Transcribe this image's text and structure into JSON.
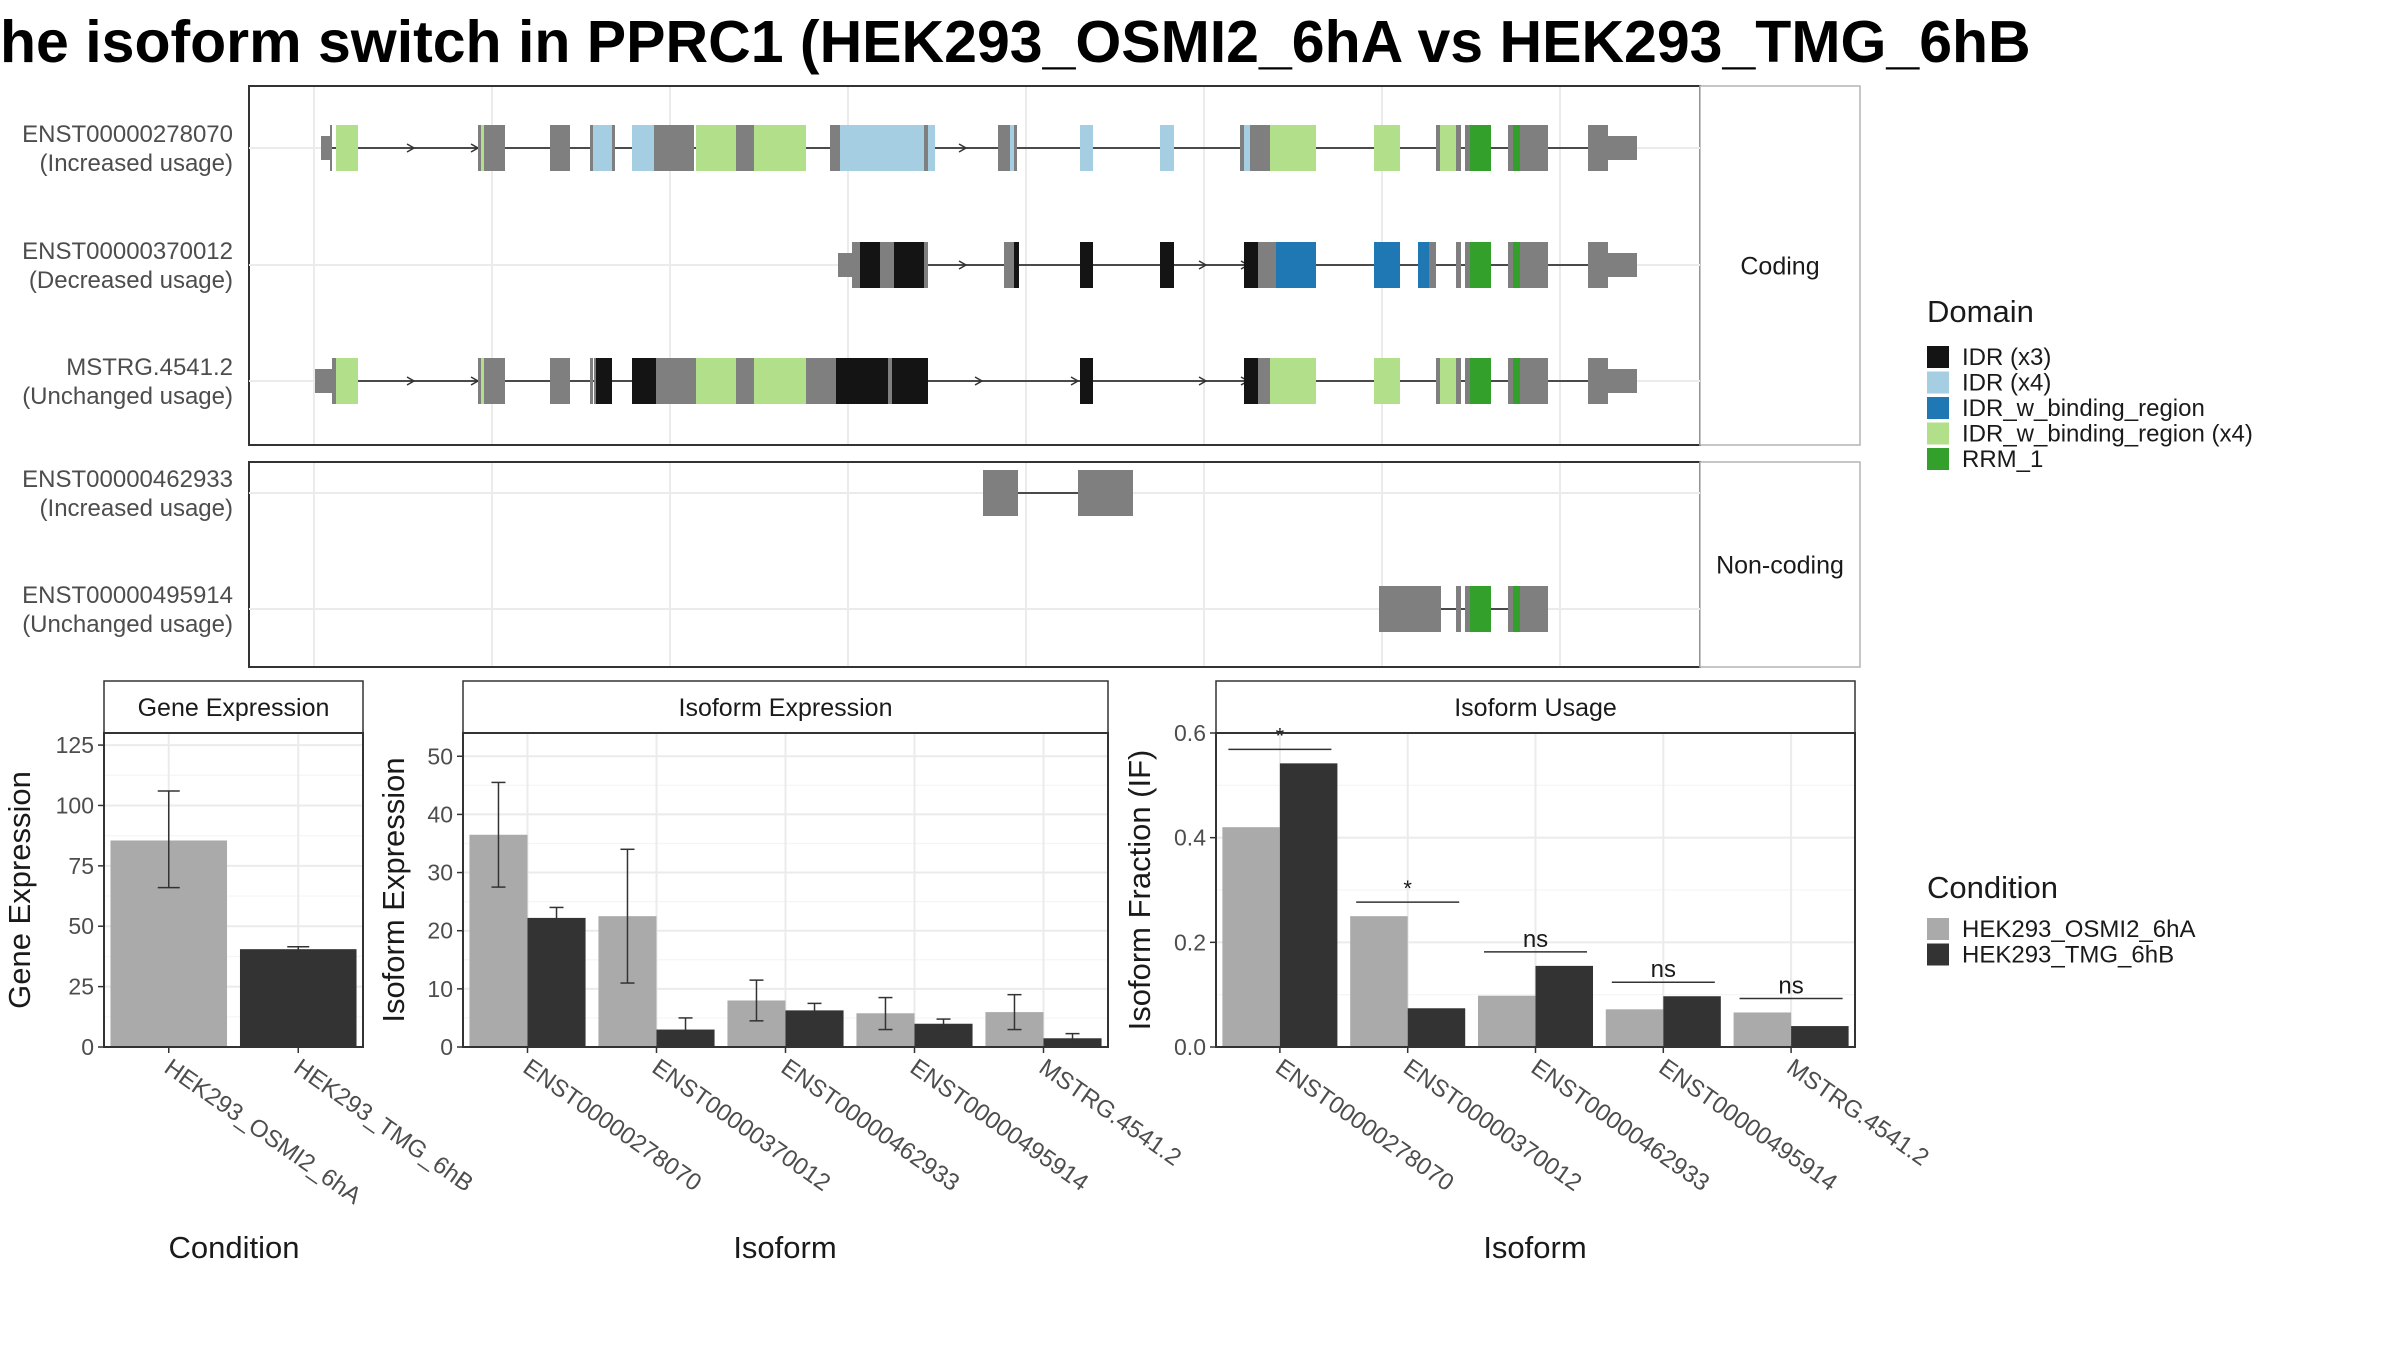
{
  "title": "he isoform switch in PPRC1 (HEK293_OSMI2_6hA vs HEK293_TMG_6hB",
  "colors": {
    "utr": "#7F7F7F",
    "cond_a": "#AAAAAA",
    "cond_b": "#333333",
    "idr_x3": "#141414",
    "idr_x4": "#A6CEE3",
    "idr_bind": "#1F78B4",
    "idr_bind_x4": "#B2DF8A",
    "rrm": "#33A02C"
  },
  "panels": {
    "coding_label": "Coding",
    "noncoding_label": "Non-coding"
  },
  "transcripts": [
    {
      "id": "ENST00000278070",
      "usage": "(Increased usage)",
      "group": "coding"
    },
    {
      "id": "ENST00000370012",
      "usage": "(Decreased usage)",
      "group": "coding"
    },
    {
      "id": "MSTRG.4541.2",
      "usage": "(Unchanged usage)",
      "group": "coding"
    },
    {
      "id": "ENST00000462933",
      "usage": "(Increased usage)",
      "group": "noncoding"
    },
    {
      "id": "ENST00000495914",
      "usage": "(Unchanged usage)",
      "group": "noncoding"
    }
  ],
  "domain_legend": {
    "title": "Domain",
    "items": [
      {
        "label": "IDR (x3)",
        "color": "#141414"
      },
      {
        "label": "IDR (x4)",
        "color": "#A6CEE3"
      },
      {
        "label": "IDR_w_binding_region",
        "color": "#1F78B4"
      },
      {
        "label": "IDR_w_binding_region (x4)",
        "color": "#B2DF8A"
      },
      {
        "label": "RRM_1",
        "color": "#33A02C"
      }
    ]
  },
  "condition_legend": {
    "title": "Condition",
    "items": [
      {
        "label": "HEK293_OSMI2_6hA",
        "color": "#AAAAAA"
      },
      {
        "label": "HEK293_TMG_6hB",
        "color": "#333333"
      }
    ]
  },
  "chart_data": [
    {
      "type": "bar",
      "title": "Gene Expression",
      "xlabel": "Condition",
      "ylabel": "Gene Expression",
      "ylim": [
        0,
        130
      ],
      "yticks": [
        0,
        25,
        50,
        75,
        100,
        125
      ],
      "categories": [
        "HEK293_OSMI2_6hA",
        "HEK293_TMG_6hB"
      ],
      "values": [
        85.5,
        40.5
      ],
      "errors": [
        [
          66,
          106
        ],
        [
          39.5,
          41.5
        ]
      ],
      "colors": [
        "#AAAAAA",
        "#333333"
      ]
    },
    {
      "type": "bar",
      "title": "Isoform Expression",
      "xlabel": "Isoform",
      "ylabel": "Isoform Expression",
      "ylim": [
        0,
        54
      ],
      "yticks": [
        0,
        10,
        20,
        30,
        40,
        50
      ],
      "categories": [
        "ENST00000278070",
        "ENST00000370012",
        "ENST00000462933",
        "ENST00000495914",
        "MSTRG.4541.2"
      ],
      "series": [
        {
          "name": "HEK293_OSMI2_6hA",
          "values": [
            36.5,
            22.5,
            8,
            5.8,
            6
          ],
          "errors": [
            [
              27.5,
              45.5
            ],
            [
              11,
              34
            ],
            [
              4.5,
              11.5
            ],
            [
              3,
              8.5
            ],
            [
              3,
              9
            ]
          ]
        },
        {
          "name": "HEK293_TMG_6hB",
          "values": [
            22.2,
            3,
            6.3,
            4,
            1.5
          ],
          "errors": [
            [
              20.5,
              24
            ],
            [
              1.5,
              5
            ],
            [
              5,
              7.5
            ],
            [
              3.3,
              4.8
            ],
            [
              1,
              2.3
            ]
          ]
        }
      ]
    },
    {
      "type": "bar",
      "title": "Isoform Usage",
      "xlabel": "Isoform",
      "ylabel": "Isoform Fraction (IF)",
      "ylim": [
        0,
        0.6
      ],
      "yticks": [
        0.0,
        0.2,
        0.4,
        0.6
      ],
      "categories": [
        "ENST00000278070",
        "ENST00000370012",
        "ENST00000462933",
        "ENST00000495914",
        "MSTRG.4541.2"
      ],
      "series": [
        {
          "name": "HEK293_OSMI2_6hA",
          "values": [
            0.42,
            0.25,
            0.098,
            0.072,
            0.066
          ]
        },
        {
          "name": "HEK293_TMG_6hB",
          "values": [
            0.542,
            0.074,
            0.155,
            0.097,
            0.04
          ]
        }
      ],
      "significance": [
        "*",
        "*",
        "ns",
        "ns",
        "ns"
      ]
    }
  ]
}
